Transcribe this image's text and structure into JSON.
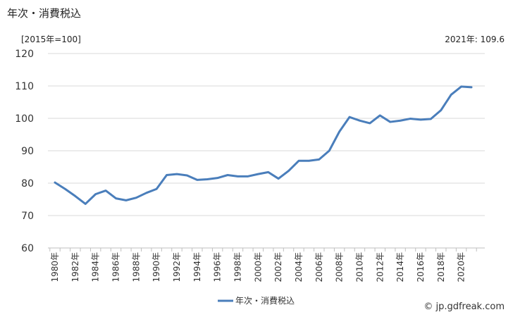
{
  "title": "年次・消費税込",
  "unit_label": "[2015年=100]",
  "latest_label": "2021年: 109.6",
  "credit": "© jp.gdfreak.com",
  "colors": {
    "series": "#4a7ebb",
    "grid": "#d9d9d9",
    "axis": "#bfbfbf"
  },
  "chart_data": {
    "type": "line",
    "title": "年次・消費税込",
    "ylabel": "[2015年=100]",
    "ylim": [
      60,
      120
    ],
    "yticks": [
      60,
      70,
      80,
      90,
      100,
      110,
      120
    ],
    "grid": true,
    "legend_position": "bottom-center",
    "x": [
      1980,
      1981,
      1982,
      1983,
      1984,
      1985,
      1986,
      1987,
      1988,
      1989,
      1990,
      1991,
      1992,
      1993,
      1994,
      1995,
      1996,
      1997,
      1998,
      1999,
      2000,
      2001,
      2002,
      2003,
      2004,
      2005,
      2006,
      2007,
      2008,
      2009,
      2010,
      2011,
      2012,
      2013,
      2014,
      2015,
      2016,
      2017,
      2018,
      2019,
      2020,
      2021
    ],
    "xtick_labels": [
      "1980年",
      "1982年",
      "1984年",
      "1986年",
      "1988年",
      "1990年",
      "1992年",
      "1994年",
      "1996年",
      "1998年",
      "2000年",
      "2002年",
      "2004年",
      "2006年",
      "2008年",
      "2010年",
      "2012年",
      "2014年",
      "2016年",
      "2018年",
      "2020年"
    ],
    "series": [
      {
        "name": "年次・消費税込",
        "values": [
          80.2,
          78.2,
          76.0,
          73.6,
          76.6,
          77.7,
          75.3,
          74.7,
          75.5,
          77.0,
          78.2,
          82.5,
          82.8,
          82.4,
          81.0,
          81.2,
          81.6,
          82.5,
          82.1,
          82.1,
          82.8,
          83.4,
          81.4,
          83.8,
          86.9,
          86.9,
          87.3,
          90.0,
          95.9,
          100.4,
          99.3,
          98.5,
          100.9,
          98.9,
          99.3,
          99.9,
          99.6,
          99.8,
          102.5,
          107.3,
          109.8,
          109.6
        ]
      }
    ]
  }
}
